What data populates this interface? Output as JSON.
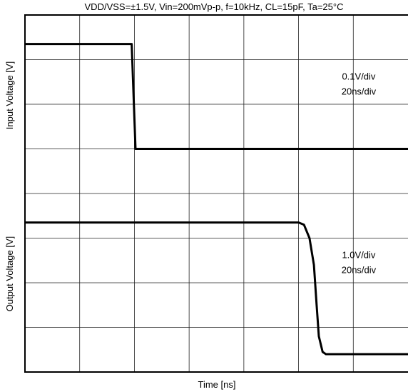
{
  "chart_data": {
    "type": "line",
    "title": "VDD/VSS=±1.5V, Vin=200mVp-p, f=10kHz, CL=15pF, Ta=25°C",
    "xlabel": "Time  [ns]",
    "grid": true,
    "x_divisions": 7,
    "y_divisions": 8,
    "panels": [
      {
        "name": "input",
        "ylabel": "Input Voltage [V]",
        "scale_labels": [
          "0.1V/div",
          "20ns/div"
        ],
        "series": [
          {
            "x": [
              0,
              1.95,
              2.02,
              7.0
            ],
            "y": [
              7.35,
              7.35,
              5.0,
              5.0
            ]
          }
        ]
      },
      {
        "name": "output",
        "ylabel": "Output Voltage [V]",
        "scale_labels": [
          "1.0V/div",
          "20ns/div"
        ],
        "series": [
          {
            "x": [
              0,
              5.0,
              5.1,
              5.2,
              5.28,
              5.33,
              5.37,
              5.44,
              5.5,
              5.6,
              7.0
            ],
            "y": [
              3.35,
              3.35,
              3.3,
              3.0,
              2.4,
              1.5,
              0.8,
              0.45,
              0.4,
              0.4,
              0.4
            ]
          }
        ]
      }
    ]
  }
}
